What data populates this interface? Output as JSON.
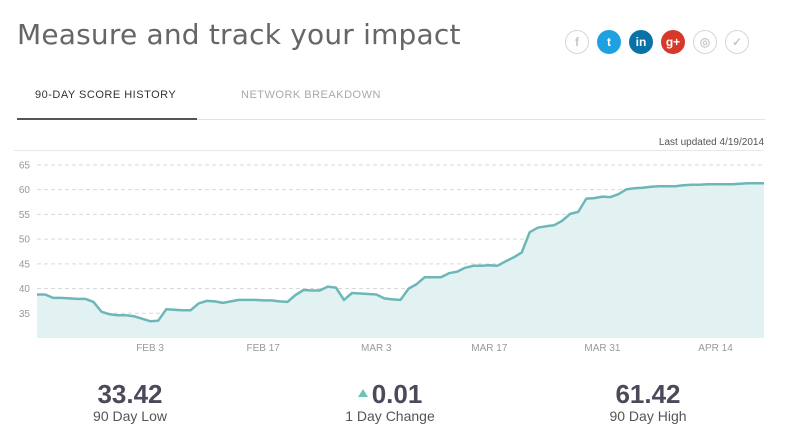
{
  "header": {
    "title": "Measure and track your impact"
  },
  "social": [
    {
      "icon": "facebook-icon",
      "glyph": "f"
    },
    {
      "icon": "twitter-icon",
      "glyph": "t"
    },
    {
      "icon": "linkedin-icon",
      "glyph": "in"
    },
    {
      "icon": "google-plus-icon",
      "glyph": "g+"
    },
    {
      "icon": "instagram-icon",
      "glyph": "◎"
    },
    {
      "icon": "klout-icon",
      "glyph": "✓"
    }
  ],
  "tabs": {
    "active": "90-DAY SCORE HISTORY",
    "inactive": "NETWORK BREAKDOWN"
  },
  "chart": {
    "last_updated": "Last updated 4/19/2014"
  },
  "chart_data": {
    "type": "area",
    "ylim": [
      30,
      66
    ],
    "yticks": [
      35,
      40,
      45,
      50,
      55,
      60,
      65
    ],
    "xtick_labels": [
      {
        "label": "FEB 3",
        "index": 14
      },
      {
        "label": "FEB 17",
        "index": 28
      },
      {
        "label": "MAR 3",
        "index": 42
      },
      {
        "label": "MAR 17",
        "index": 56
      },
      {
        "label": "MAR 31",
        "index": 70
      },
      {
        "label": "APR 14",
        "index": 84
      }
    ],
    "grid": true,
    "series": [
      {
        "values": [
          38.8,
          38.8,
          38.1,
          38.1,
          38.0,
          37.9,
          37.9,
          37.3,
          35.3,
          34.8,
          34.6,
          34.6,
          34.4,
          33.9,
          33.4,
          33.5,
          35.8,
          35.7,
          35.6,
          35.6,
          37.0,
          37.5,
          37.4,
          37.1,
          37.4,
          37.7,
          37.7,
          37.7,
          37.6,
          37.6,
          37.4,
          37.3,
          38.7,
          39.7,
          39.6,
          39.6,
          40.4,
          40.2,
          37.7,
          39.1,
          39.0,
          38.9,
          38.8,
          38.0,
          37.8,
          37.7,
          40.0,
          40.9,
          42.3,
          42.3,
          42.3,
          43.1,
          43.4,
          44.2,
          44.6,
          44.6,
          44.7,
          44.6,
          45.5,
          46.3,
          47.3,
          51.4,
          52.3,
          52.6,
          52.8,
          53.7,
          55.1,
          55.5,
          58.2,
          58.3,
          58.6,
          58.5,
          59.1,
          60.1,
          60.3,
          60.4,
          60.6,
          60.7,
          60.7,
          60.7,
          60.9,
          61.0,
          61.0,
          61.1,
          61.1,
          61.1,
          61.1,
          61.2,
          61.3,
          61.3,
          61.3
        ]
      }
    ]
  },
  "stats": {
    "low": {
      "value": "33.42",
      "label": "90 Day Low"
    },
    "change": {
      "value": "0.01",
      "label": "1 Day Change"
    },
    "high": {
      "value": "61.42",
      "label": "90 Day High"
    }
  }
}
